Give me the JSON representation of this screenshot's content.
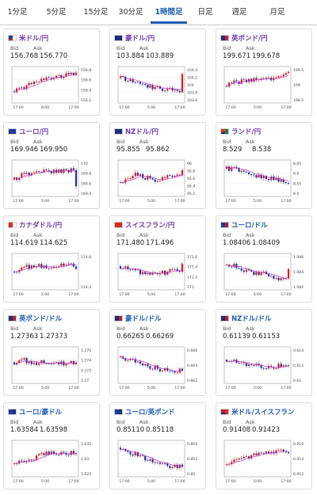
{
  "tabs": [
    "1分足",
    "5分足",
    "15分足",
    "30分足",
    "1時間足",
    "日足",
    "週足",
    "月足"
  ],
  "active_tab": 4,
  "labels": {
    "bid": "Bid",
    "ask": "Ask"
  },
  "cards": [
    {
      "pair": "米ドル/円",
      "color": "purple",
      "bid": "156.768",
      "ask": "156.770",
      "flag": [
        "#2b3f8f",
        "#ffffff",
        "#cc2233"
      ],
      "chart_data": {
        "type": "candlestick",
        "ticks": [
          "156.8",
          "156.6",
          "156.4",
          "156.2"
        ],
        "xlabels": [
          "17:00",
          "8:00",
          "17:00"
        ],
        "trend": [
          0.75,
          0.6,
          0.42,
          0.3,
          0.22,
          0.2,
          0.14,
          0.12
        ],
        "ma": "up",
        "tail": 0.05
      }
    },
    {
      "pair": "豪ドル/円",
      "color": "purple",
      "bid": "103.884",
      "ask": "103.889",
      "flag": [
        "#1d2f7a",
        "#1d2f7a",
        "#1d2f7a"
      ],
      "chart_data": {
        "type": "candlestick",
        "ticks": [
          "104.4",
          "104.2",
          "104",
          "103.8",
          "103.6"
        ],
        "xlabels": [
          "17:00",
          "5:00",
          "17:00"
        ],
        "trend": [
          0.25,
          0.35,
          0.4,
          0.55,
          0.6,
          0.7,
          0.66,
          0.72
        ],
        "ma": "down",
        "tail": 0.1
      }
    },
    {
      "pair": "英ポンド/円",
      "color": "purple",
      "bid": "199.671",
      "ask": "199.678",
      "flag": [
        "#1d2f7a",
        "#cc2233",
        "#1d2f7a"
      ],
      "chart_data": {
        "type": "candlestick",
        "ticks": [
          "199.5",
          "199",
          "198.5"
        ],
        "xlabels": [
          "17:00",
          "5:00",
          "17:00"
        ],
        "trend": [
          0.55,
          0.4,
          0.35,
          0.3,
          0.3,
          0.25,
          0.18,
          0.08
        ],
        "ma": "up",
        "tail": 0.02
      }
    },
    {
      "pair": "ユーロ/円",
      "color": "purple",
      "bid": "169.946",
      "ask": "169.950",
      "flag": [
        "#1d3aa0",
        "#1d3aa0",
        "#1d3aa0"
      ],
      "chart_data": {
        "type": "candlestick",
        "ticks": [
          "170",
          "169.8",
          "169.6",
          "169.4"
        ],
        "xlabels": [
          "17:00",
          "5:00",
          "17:00"
        ],
        "trend": [
          0.55,
          0.3,
          0.4,
          0.25,
          0.3,
          0.2,
          0.25,
          0.15
        ],
        "ma": "up",
        "tail": 0.8
      }
    },
    {
      "pair": "NZドル/円",
      "color": "purple",
      "bid": "95.855",
      "ask": "95.862",
      "flag": [
        "#1d2f7a",
        "#1d2f7a",
        "#1d2f7a"
      ],
      "chart_data": {
        "type": "candlestick",
        "ticks": [
          "96",
          "95.8",
          "95.6",
          "95.4",
          "95.2"
        ],
        "xlabels": [
          "17:00",
          "5:00",
          "17:00"
        ],
        "trend": [
          0.65,
          0.45,
          0.35,
          0.5,
          0.55,
          0.45,
          0.35,
          0.3
        ],
        "ma": "flat",
        "tail": 0.2
      }
    },
    {
      "pair": "ランド/円",
      "color": "purple",
      "bid": "8.529",
      "ask": "8.538",
      "flag": [
        "#d2312b",
        "#2a7a3b",
        "#1d2f7a"
      ],
      "chart_data": {
        "type": "candlestick",
        "ticks": [
          "8.65",
          "8.6",
          "8.55",
          "8.5"
        ],
        "xlabels": [
          "17:00",
          "5:00",
          "17:00"
        ],
        "trend": [
          0.15,
          0.18,
          0.25,
          0.4,
          0.45,
          0.5,
          0.6,
          0.75
        ],
        "ma": "down",
        "tail": 0.7
      }
    },
    {
      "pair": "カナダドル/円",
      "color": "purple",
      "bid": "114.619",
      "ask": "114.625",
      "flag": [
        "#d52b1e",
        "#ffffff",
        "#d52b1e"
      ],
      "chart_data": {
        "type": "candlestick",
        "ticks": [
          "114.6",
          "114.4"
        ],
        "xlabels": [
          "17:00",
          "5:00",
          "17:00"
        ],
        "trend": [
          0.5,
          0.35,
          0.3,
          0.3,
          0.35,
          0.3,
          0.25,
          0.3
        ],
        "ma": "flat",
        "tail": 0.4
      }
    },
    {
      "pair": "スイスフラン/円",
      "color": "purple",
      "bid": "171.480",
      "ask": "171.496",
      "flag": [
        "#d52b1e",
        "#d52b1e",
        "#d52b1e"
      ],
      "chart_data": {
        "type": "candlestick",
        "ticks": [
          "171.6",
          "171.4",
          "171.2",
          "171"
        ],
        "xlabels": [
          "17:00",
          "5:00",
          "17:00"
        ],
        "trend": [
          0.3,
          0.4,
          0.5,
          0.6,
          0.55,
          0.55,
          0.45,
          0.4
        ],
        "ma": "down",
        "tail": 0.2
      }
    },
    {
      "pair": "ユーロ/ドル",
      "color": "blue",
      "bid": "1.08406",
      "ask": "1.08409",
      "flag": [
        "#1d3aa0",
        "#b22234",
        "#1d3aa0"
      ],
      "chart_data": {
        "type": "candlestick",
        "ticks": [
          "1.086",
          "1.084",
          "1.082"
        ],
        "xlabels": [
          "17:00",
          "5:00",
          "17:00"
        ],
        "trend": [
          0.25,
          0.3,
          0.45,
          0.6,
          0.55,
          0.7,
          0.75,
          0.8
        ],
        "ma": "down",
        "tail": 0.4
      }
    },
    {
      "pair": "英ポンド/ドル",
      "color": "blue",
      "bid": "1.27363",
      "ask": "1.27373",
      "flag": [
        "#1d2f7a",
        "#b22234",
        "#1d2f7a"
      ],
      "chart_data": {
        "type": "candlestick",
        "ticks": [
          "1.276",
          "1.274",
          "1.272",
          "1.27"
        ],
        "xlabels": [
          "17:00",
          "5:00",
          "17:00"
        ],
        "trend": [
          0.4,
          0.3,
          0.45,
          0.4,
          0.5,
          0.45,
          0.4,
          0.45
        ],
        "ma": "flat",
        "tail": 0.4
      }
    },
    {
      "pair": "豪ドル/ドル",
      "color": "blue",
      "bid": "0.66265",
      "ask": "0.66269",
      "flag": [
        "#1d2f7a",
        "#b22234",
        "#1d2f7a"
      ],
      "chart_data": {
        "type": "candlestick",
        "ticks": [
          "0.666",
          "0.664",
          "0.662"
        ],
        "xlabels": [
          "17:00",
          "5:00",
          "17:00"
        ],
        "trend": [
          0.2,
          0.3,
          0.4,
          0.55,
          0.6,
          0.7,
          0.75,
          0.7
        ],
        "ma": "down",
        "tail": 0.7
      }
    },
    {
      "pair": "NZドル/ドル",
      "color": "blue",
      "bid": "0.61139",
      "ask": "0.61153",
      "flag": [
        "#1d2f7a",
        "#b22234",
        "#1d2f7a"
      ],
      "chart_data": {
        "type": "candlestick",
        "ticks": [
          "0.614",
          "0.612",
          "0.61"
        ],
        "xlabels": [
          "17:00",
          "5:00",
          "17:00"
        ],
        "trend": [
          0.3,
          0.4,
          0.5,
          0.45,
          0.55,
          0.6,
          0.5,
          0.55
        ],
        "ma": "flat",
        "tail": 0.5
      }
    },
    {
      "pair": "ユーロ/豪ドル",
      "color": "blue",
      "bid": "1.63584",
      "ask": "1.63598",
      "flag": [
        "#1d3aa0",
        "#1d2f7a",
        "#1d3aa0"
      ],
      "chart_data": {
        "type": "candlestick",
        "ticks": [
          "1.635",
          "1.63",
          "1.625"
        ],
        "xlabels": [
          "17:00",
          "5:00",
          "17:00"
        ],
        "trend": [
          0.7,
          0.6,
          0.5,
          0.35,
          0.3,
          0.32,
          0.28,
          0.3
        ],
        "ma": "up",
        "tail": 0.3
      }
    },
    {
      "pair": "ユーロ/英ポンド",
      "color": "blue",
      "bid": "0.85110",
      "ask": "0.85118",
      "flag": [
        "#1d3aa0",
        "#1d2f7a",
        "#1d3aa0"
      ],
      "chart_data": {
        "type": "candlestick",
        "ticks": [
          "0.854",
          "0.852",
          "0.85"
        ],
        "xlabels": [
          "17:00",
          "5:00",
          "17:00"
        ],
        "trend": [
          0.1,
          0.25,
          0.4,
          0.55,
          0.65,
          0.75,
          0.8,
          0.8
        ],
        "ma": "down",
        "tail": 0.8
      }
    },
    {
      "pair": "米ドル/スイスフラン",
      "color": "blue",
      "bid": "0.91408",
      "ask": "0.91423",
      "flag": [
        "#b22234",
        "#d52b1e",
        "#1d2f7a"
      ],
      "chart_data": {
        "type": "candlestick",
        "ticks": [
          "0.916",
          "0.914",
          "0.912"
        ],
        "xlabels": [
          "17:00",
          "5:00",
          "17:00"
        ],
        "trend": [
          0.75,
          0.6,
          0.45,
          0.4,
          0.3,
          0.25,
          0.2,
          0.3
        ],
        "ma": "up",
        "tail": 0.3
      }
    }
  ]
}
